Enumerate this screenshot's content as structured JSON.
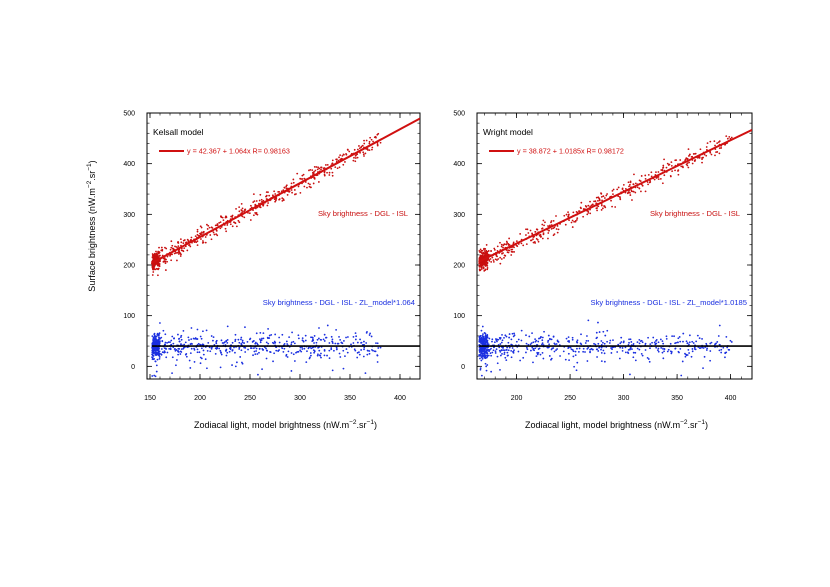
{
  "chart_data": [
    {
      "type": "scatter",
      "panel_title": "Kelsall model",
      "xlabel": "Zodiacal light, model brightness (nW.m",
      "xlabel_exp1": "−2",
      "xlabel_mid": ".sr",
      "xlabel_exp2": "−1",
      "xlabel_end": ")",
      "ylabel": "Surface brightness (nW.m",
      "ylabel_exp1": "−2",
      "ylabel_mid": ".sr",
      "ylabel_exp2": "−1",
      "ylabel_end": ")",
      "xlim": [
        147,
        420
      ],
      "ylim": [
        -25,
        500
      ],
      "xticks": [
        150,
        200,
        250,
        300,
        350,
        400
      ],
      "xtick_labels": [
        "150",
        "200",
        "250",
        "300",
        "350",
        "400"
      ],
      "yticks": [
        0,
        100,
        200,
        300,
        400,
        500
      ],
      "ytick_labels": [
        "0",
        "100",
        "200",
        "300",
        "400",
        "500"
      ],
      "fit_label": "y = 42.367 + 1.064x    R= 0.98163",
      "fit": {
        "intercept": 42.367,
        "slope": 1.064,
        "R": 0.98163,
        "color": "#d01010"
      },
      "baseline": {
        "y": 40,
        "color": "#000000"
      },
      "x_data_range": [
        152,
        382
      ],
      "series": [
        {
          "name": "Sky brightness - DGL - ISL",
          "color": "#c81010",
          "points": 700
        },
        {
          "name": "Sky brightness - DGL - ISL - ZL_model*1.064",
          "color": "#1a2fe0",
          "points": 700
        }
      ]
    },
    {
      "type": "scatter",
      "panel_title": "Wright model",
      "xlabel": "Zodiacal light, model brightness (nW.m",
      "xlabel_exp1": "−2",
      "xlabel_mid": ".sr",
      "xlabel_exp2": "−1",
      "xlabel_end": ")",
      "xlim": [
        163,
        420
      ],
      "ylim": [
        -25,
        500
      ],
      "xticks": [
        200,
        250,
        300,
        350,
        400
      ],
      "xtick_labels": [
        "200",
        "250",
        "300",
        "350",
        "400"
      ],
      "yticks": [
        0,
        100,
        200,
        300,
        400,
        500
      ],
      "ytick_labels": [
        "0",
        "100",
        "200",
        "300",
        "400",
        "500"
      ],
      "fit_label": "y = 38.872 + 1.0185x    R= 0.98172",
      "fit": {
        "intercept": 38.872,
        "slope": 1.0185,
        "R": 0.98172,
        "color": "#d01010"
      },
      "baseline": {
        "y": 40,
        "color": "#000000"
      },
      "x_data_range": [
        165,
        402
      ],
      "series": [
        {
          "name": "Sky brightness - DGL - ISL",
          "color": "#c81010",
          "points": 700
        },
        {
          "name": "Sky brightness - DGL - ISL - ZL_model*1.0185",
          "color": "#1a2fe0",
          "points": 700
        }
      ]
    }
  ]
}
